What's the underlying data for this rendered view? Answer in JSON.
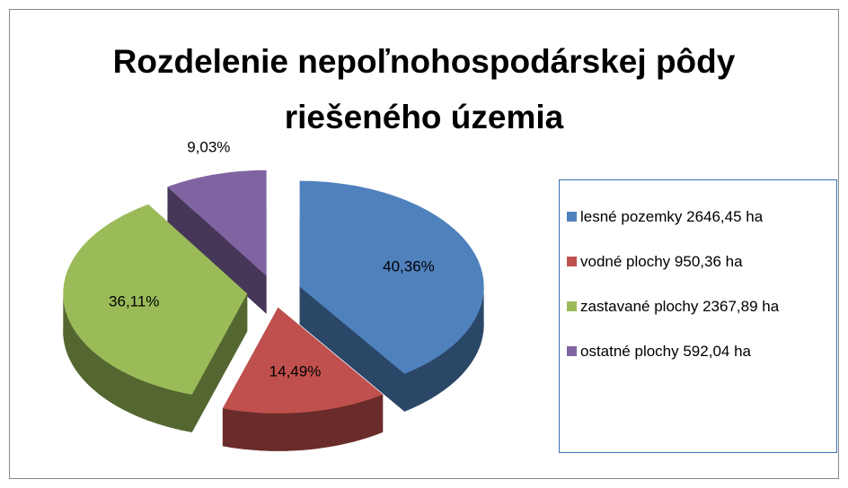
{
  "chart_data": {
    "type": "pie",
    "title": "Rozdelenie nepoľnohospodárskej pôdy riešeného územia",
    "categories": [
      "lesné pozemky 2646,45 ha",
      "vodné plochy 950,36 ha",
      "zastavané plochy 2367,89 ha",
      "ostatné plochy 592,04 ha"
    ],
    "values": [
      40.36,
      14.49,
      36.11,
      9.03
    ],
    "value_labels": [
      "40,36%",
      "14,49%",
      "36,11%",
      "9,03%"
    ],
    "colors": [
      "#4f81bd",
      "#c0504d",
      "#9bbb59",
      "#8064a2"
    ],
    "legend": "right"
  }
}
